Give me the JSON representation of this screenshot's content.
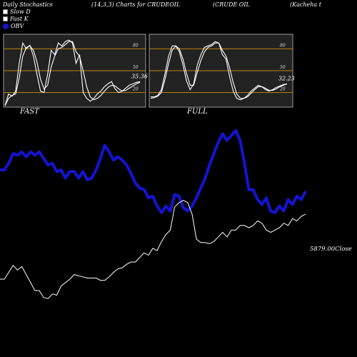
{
  "header": {
    "title": "Daily Stochastics",
    "params": "(14,3,3) Charts for CRUDEOIL",
    "name": "(CRUDE OIL",
    "exchange": "(Kacheha  t"
  },
  "legend": [
    {
      "label": "Slow  D",
      "swatch": "white-square"
    },
    {
      "label": "Fast K",
      "swatch": "white-square"
    },
    {
      "label": "OBV",
      "swatch": "blue-circle"
    }
  ],
  "colors": {
    "background": "#000000",
    "panel": "#222222",
    "band": "#b8860b",
    "stoch": "#ffffff",
    "obv": "#1414d2",
    "price": "#ffffff"
  },
  "chart_data": [
    {
      "type": "line",
      "title": "FAST",
      "ylim": [
        0,
        100
      ],
      "levels": [
        20,
        50,
        80
      ],
      "level_labels": [
        "80",
        "50",
        "20"
      ],
      "last_value_label": "35.36",
      "x": [
        0,
        1,
        2,
        3,
        4,
        5,
        6,
        7,
        8,
        9,
        10,
        11,
        12,
        13,
        14,
        15,
        16,
        17,
        18,
        19,
        20,
        21,
        22,
        23,
        24,
        25,
        26,
        27,
        28,
        29,
        30,
        31,
        32,
        33,
        34,
        35,
        36,
        37,
        38
      ],
      "series": [
        {
          "name": "Fast K",
          "values": [
            2,
            18,
            15,
            22,
            60,
            88,
            80,
            85,
            70,
            45,
            22,
            20,
            45,
            78,
            72,
            88,
            84,
            90,
            92,
            88,
            60,
            72,
            20,
            12,
            8,
            12,
            18,
            22,
            28,
            32,
            35,
            25,
            20,
            22,
            26,
            30,
            32,
            34,
            35
          ]
        },
        {
          "name": "Slow D",
          "values": [
            2,
            12,
            16,
            18,
            40,
            70,
            82,
            84,
            78,
            62,
            38,
            25,
            30,
            55,
            70,
            80,
            82,
            86,
            90,
            90,
            76,
            70,
            50,
            28,
            14,
            10,
            12,
            16,
            22,
            27,
            30,
            29,
            25,
            22,
            23,
            26,
            29,
            32,
            34
          ]
        }
      ]
    },
    {
      "type": "line",
      "title": "FULL",
      "ylim": [
        0,
        100
      ],
      "levels": [
        20,
        50,
        80
      ],
      "level_labels": [
        "80",
        "50",
        "20"
      ],
      "last_value_label": "32.23",
      "x": [
        0,
        1,
        2,
        3,
        4,
        5,
        6,
        7,
        8,
        9,
        10,
        11,
        12,
        13,
        14,
        15,
        16,
        17,
        18,
        19,
        20,
        21,
        22,
        23,
        24,
        25,
        26,
        27,
        28,
        29,
        30,
        31,
        32,
        33,
        34,
        35,
        36,
        37,
        38
      ],
      "series": [
        {
          "name": "Fast K",
          "values": [
            14,
            14,
            16,
            24,
            46,
            70,
            84,
            84,
            76,
            58,
            36,
            24,
            32,
            58,
            72,
            82,
            84,
            86,
            90,
            88,
            72,
            66,
            42,
            22,
            12,
            10,
            12,
            16,
            22,
            26,
            30,
            28,
            24,
            22,
            24,
            27,
            29,
            31,
            32
          ]
        },
        {
          "name": "Slow D",
          "values": [
            12,
            13,
            15,
            20,
            38,
            60,
            78,
            84,
            80,
            66,
            46,
            30,
            30,
            48,
            64,
            76,
            82,
            84,
            88,
            88,
            78,
            70,
            54,
            34,
            18,
            12,
            12,
            14,
            19,
            24,
            28,
            28,
            26,
            23,
            23,
            25,
            28,
            30,
            32
          ]
        }
      ]
    },
    {
      "type": "line",
      "x": [
        0,
        1,
        2,
        3,
        4,
        5,
        6,
        7,
        8,
        9,
        10,
        11,
        12,
        13,
        14,
        15,
        16,
        17,
        18,
        19,
        20,
        21,
        22,
        23,
        24,
        25,
        26,
        27,
        28,
        29,
        30,
        31,
        32,
        33,
        34,
        35,
        36,
        37,
        38,
        39,
        40,
        41,
        42,
        43,
        44,
        45,
        46,
        47,
        48,
        49,
        50,
        51,
        52,
        53,
        54,
        55,
        56,
        57,
        58,
        59,
        60,
        61,
        62,
        63,
        64,
        65,
        66,
        67,
        68,
        69,
        70
      ],
      "series": [
        {
          "name": "OBV",
          "values": [
            62,
            62,
            70,
            82,
            80,
            84,
            78,
            84,
            80,
            84,
            76,
            68,
            70,
            60,
            62,
            52,
            60,
            60,
            52,
            60,
            50,
            52,
            62,
            76,
            92,
            84,
            74,
            78,
            74,
            68,
            58,
            46,
            40,
            38,
            28,
            30,
            18,
            10,
            18,
            12,
            32,
            30,
            16,
            12,
            18,
            28,
            40,
            52,
            68,
            82,
            96,
            106,
            98,
            104,
            110,
            98,
            70,
            38,
            38,
            26,
            20,
            28,
            12,
            10,
            18,
            12,
            26,
            20,
            30,
            26,
            36
          ]
        },
        {
          "name": "Close",
          "last_value_label": "5879.00Close",
          "values": [
            -37,
            -37,
            -31,
            -25,
            -29,
            -26,
            -33,
            -40,
            -47,
            -47,
            -53,
            -54,
            -50,
            -51,
            -43,
            -40,
            -37,
            -33,
            -34,
            -35,
            -36,
            -36,
            -36,
            -38,
            -38,
            -35,
            -31,
            -28,
            -27,
            -24,
            -22,
            -22,
            -18,
            -14,
            -16,
            -10,
            -12,
            -4,
            2,
            6,
            26,
            30,
            32,
            30,
            20,
            -2,
            -5,
            -5,
            -6,
            -4,
            0,
            4,
            0,
            6,
            6,
            10,
            10,
            8,
            10,
            14,
            12,
            6,
            4,
            6,
            8,
            12,
            10,
            16,
            14,
            18,
            20
          ]
        }
      ]
    }
  ],
  "panels": [
    {
      "title": "FAST",
      "last_label": "35.36"
    },
    {
      "title": "FULL",
      "last_label": "32.23"
    }
  ],
  "close_label": "5879.00Close"
}
